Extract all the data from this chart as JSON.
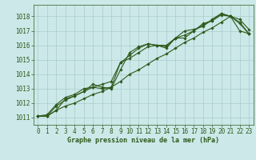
{
  "title": "Graphe pression niveau de la mer (hPa)",
  "bg_color": "#cce8e8",
  "grid_color": "#aacccc",
  "line_color": "#2d5a1b",
  "xlim": [
    -0.5,
    23.5
  ],
  "ylim": [
    1010.5,
    1018.8
  ],
  "yticks": [
    1011,
    1012,
    1013,
    1014,
    1015,
    1016,
    1017,
    1018
  ],
  "xticks": [
    0,
    1,
    2,
    3,
    4,
    5,
    6,
    7,
    8,
    9,
    10,
    11,
    12,
    13,
    14,
    15,
    16,
    17,
    18,
    19,
    20,
    21,
    22,
    23
  ],
  "series": [
    [
      1011.1,
      1011.1,
      1011.5,
      1012.3,
      1012.5,
      1012.8,
      1013.1,
      1013.0,
      1013.1,
      1014.8,
      1015.3,
      1015.8,
      1016.1,
      1016.0,
      1015.8,
      1016.5,
      1016.5,
      1017.0,
      1017.4,
      1017.7,
      1018.1,
      1018.0,
      1017.5,
      1016.8
    ],
    [
      1011.1,
      1011.1,
      1011.8,
      1012.2,
      1012.5,
      1012.8,
      1013.3,
      1013.1,
      1013.0,
      1014.3,
      1015.5,
      1015.9,
      1016.1,
      1016.0,
      1015.9,
      1016.5,
      1016.7,
      1017.0,
      1017.5,
      1017.7,
      1018.2,
      1018.0,
      1017.6,
      1016.8
    ],
    [
      1011.1,
      1011.2,
      1011.9,
      1012.4,
      1012.6,
      1013.0,
      1013.1,
      1013.3,
      1013.5,
      1014.8,
      1015.1,
      1015.5,
      1015.9,
      1016.0,
      1016.0,
      1016.5,
      1017.0,
      1017.1,
      1017.3,
      1017.8,
      1018.2,
      1018.0,
      1017.8,
      1017.1
    ],
    [
      1011.1,
      1011.1,
      1011.5,
      1011.8,
      1012.0,
      1012.3,
      1012.6,
      1012.8,
      1013.1,
      1013.5,
      1014.0,
      1014.3,
      1014.7,
      1015.1,
      1015.4,
      1015.8,
      1016.2,
      1016.5,
      1016.9,
      1017.2,
      1017.6,
      1018.0,
      1017.0,
      1016.8
    ]
  ],
  "marker": "D",
  "marker_size": 1.8,
  "line_width": 0.8,
  "title_fontsize": 6.0,
  "tick_fontsize": 5.5
}
